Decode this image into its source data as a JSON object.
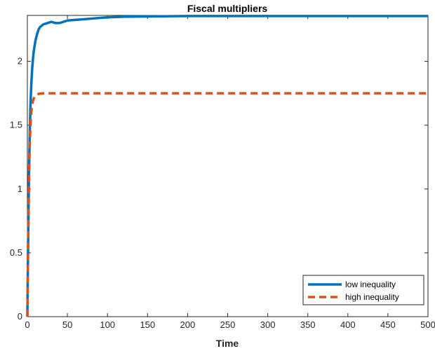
{
  "chart_data": {
    "type": "line",
    "title": "Fiscal multipliers",
    "xlabel": "Time",
    "ylabel": "",
    "xlim": [
      0,
      500
    ],
    "ylim": [
      0,
      2.36
    ],
    "xticks": [
      0,
      50,
      100,
      150,
      200,
      250,
      300,
      350,
      400,
      450,
      500
    ],
    "yticks": [
      0,
      0.5,
      1,
      1.5,
      2
    ],
    "ytick_labels": [
      "0",
      "0.5",
      "1",
      "1.5",
      "2"
    ],
    "grid": false,
    "legend_position": "bottom-right",
    "series": [
      {
        "name": "low inequality",
        "color": "#0072BD",
        "style": "solid",
        "x": [
          0,
          1,
          2,
          3,
          4,
          5,
          6,
          7,
          8,
          9,
          10,
          12,
          14,
          16,
          18,
          20,
          25,
          30,
          35,
          40,
          45,
          50,
          60,
          70,
          80,
          90,
          100,
          120,
          150,
          200,
          300,
          400,
          500
        ],
        "y": [
          0,
          0.6,
          1.1,
          1.45,
          1.68,
          1.83,
          1.94,
          2.02,
          2.08,
          2.12,
          2.16,
          2.21,
          2.25,
          2.27,
          2.28,
          2.29,
          2.3,
          2.31,
          2.3,
          2.3,
          2.31,
          2.32,
          2.325,
          2.33,
          2.335,
          2.34,
          2.345,
          2.35,
          2.352,
          2.355,
          2.355,
          2.355,
          2.355
        ]
      },
      {
        "name": "high inequality",
        "color": "#D95319",
        "style": "dashed",
        "x": [
          0,
          1,
          2,
          3,
          4,
          5,
          6,
          7,
          8,
          9,
          10,
          12,
          14,
          16,
          20,
          30,
          50,
          100,
          200,
          300,
          400,
          500
        ],
        "y": [
          0,
          0.6,
          1.05,
          1.35,
          1.52,
          1.61,
          1.66,
          1.69,
          1.71,
          1.72,
          1.73,
          1.74,
          1.745,
          1.748,
          1.75,
          1.75,
          1.75,
          1.75,
          1.75,
          1.75,
          1.75,
          1.75
        ]
      }
    ]
  }
}
